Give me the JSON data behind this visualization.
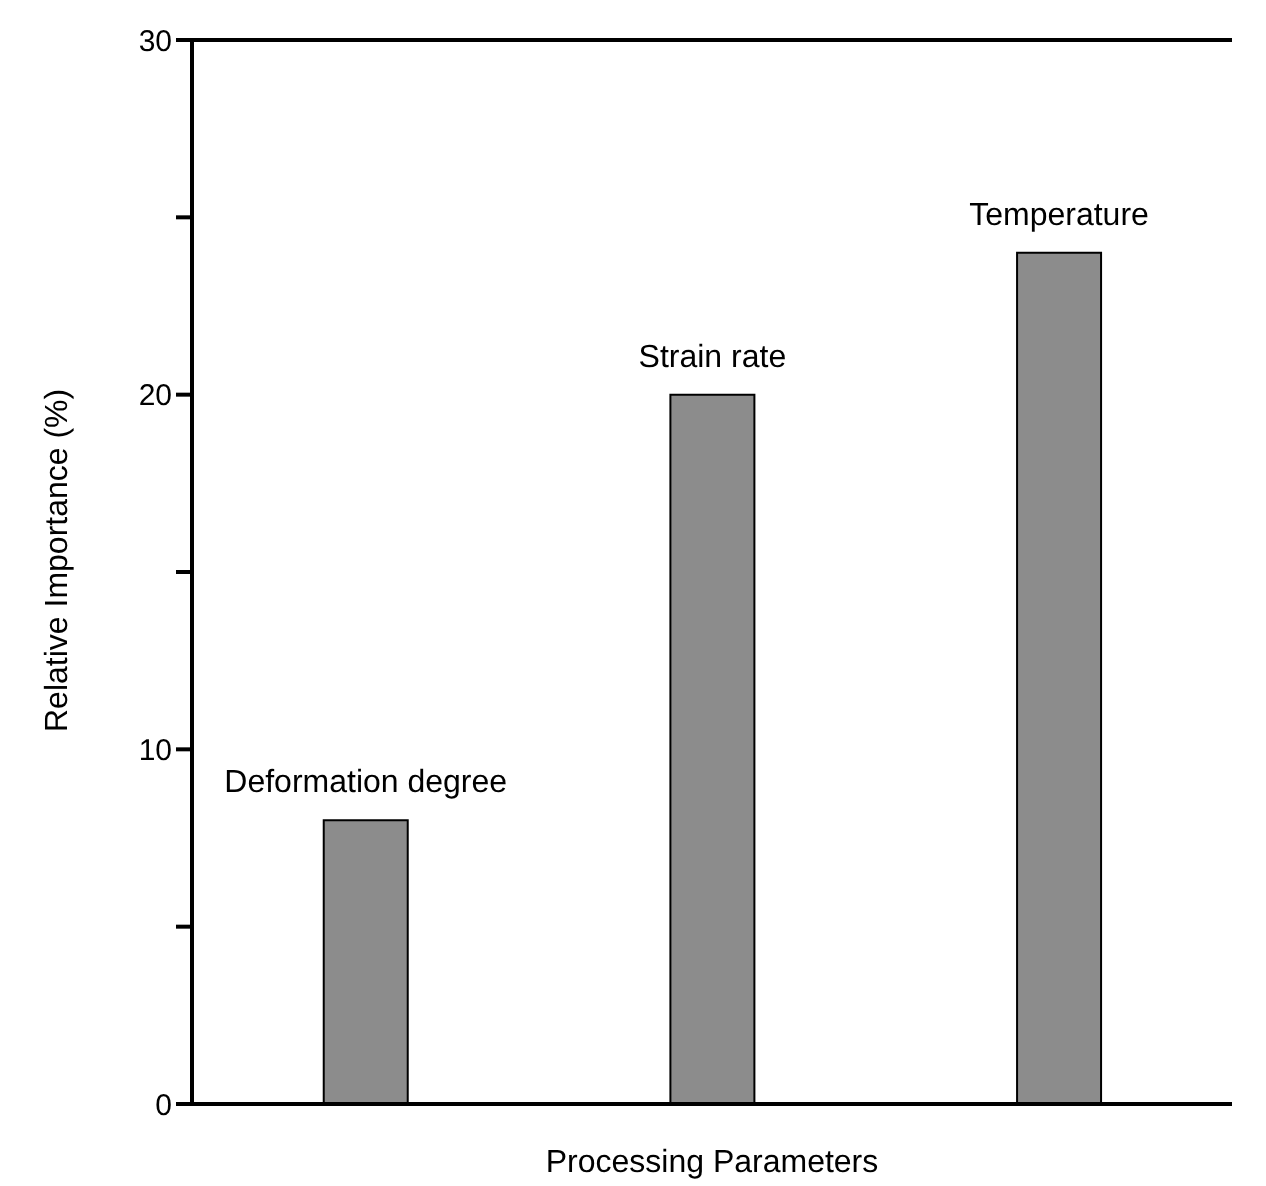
{
  "chart_data": {
    "type": "bar",
    "xlabel": "Processing Parameters",
    "ylabel": "Relative Importance (%)",
    "categories": [
      "Deformation degree",
      "Strain rate",
      "Temperature"
    ],
    "values": [
      8,
      20,
      24
    ],
    "color": "#8c8c8c",
    "ylim": [
      0,
      30
    ],
    "yticks": [
      0,
      {
        "value": 5,
        "label": null
      },
      10,
      {
        "value": 15,
        "label": null
      },
      20,
      {
        "value": 25,
        "label": null
      },
      30
    ],
    "grid": false,
    "legend": false
  }
}
